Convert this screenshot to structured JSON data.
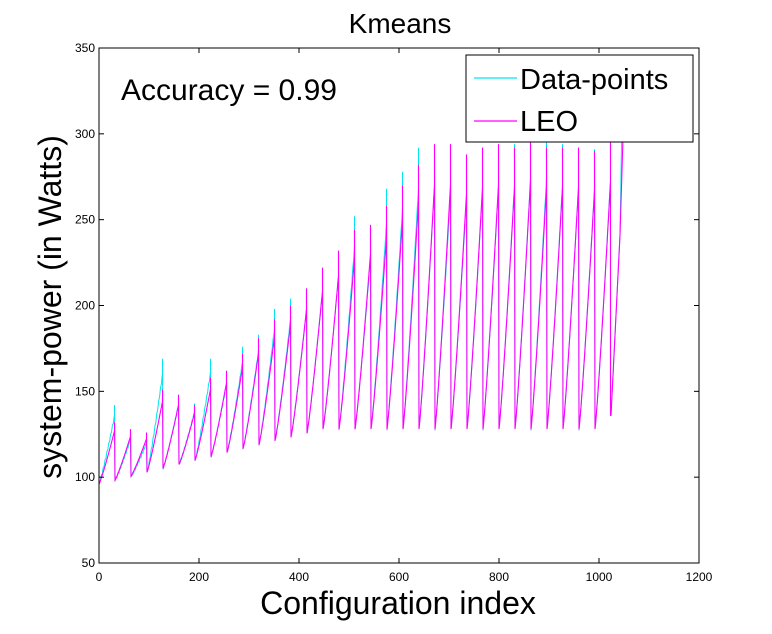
{
  "chart_data": {
    "type": "line",
    "title": "Kmeans",
    "xlabel": "Configuration index",
    "ylabel": "system-power (in Watts)",
    "xlim": [
      0,
      1200
    ],
    "ylim": [
      50,
      350
    ],
    "xticks": [
      "0",
      "200",
      "400",
      "600",
      "800",
      "1000",
      "1200"
    ],
    "yticks": [
      "50",
      "100",
      "150",
      "200",
      "250",
      "300",
      "350"
    ],
    "annotation": "Accuracy = 0.99",
    "legend_position": "top-right",
    "grid": false,
    "sawtooth": {
      "period": 32,
      "cycles": 32,
      "peaks_datapoints": [
        142,
        126,
        123,
        169,
        148,
        143,
        169,
        161,
        176,
        183,
        198,
        204,
        210,
        222,
        232,
        252,
        244,
        268,
        278,
        292,
        292,
        288,
        284,
        290,
        292,
        294,
        298,
        298,
        294,
        292,
        291,
        297
      ],
      "peaks_leo": [
        132,
        128,
        126,
        151,
        148,
        142,
        158,
        162,
        172,
        181,
        192,
        200,
        210,
        222,
        232,
        244,
        247,
        258,
        270,
        282,
        294,
        294,
        288,
        292,
        294,
        292,
        296,
        292,
        292,
        292,
        290,
        296
      ],
      "last_peak_datapoints": 345,
      "last_peak_leo": 298,
      "start_start": 94,
      "mid_start": 128,
      "mid_start_cycles": 14,
      "end_cycle_frac_low": 0.72,
      "end_cycle_frac_high": 0.86,
      "low_start": 96,
      "low_end": 128
    },
    "series": [
      {
        "name": "Data-points",
        "color": "#00e5ee"
      },
      {
        "name": "LEO",
        "color": "#ff00ff"
      }
    ]
  }
}
